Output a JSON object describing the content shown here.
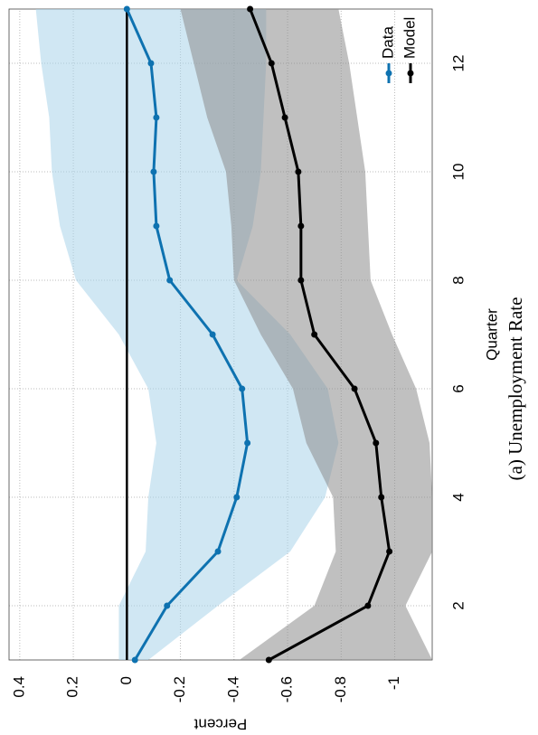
{
  "chart_data": {
    "type": "line",
    "caption": "(a) Unemployment Rate",
    "xlabel": "Quarter",
    "ylabel": "Percent",
    "xlim": [
      1,
      13
    ],
    "xticks": [
      2,
      4,
      6,
      8,
      10,
      12
    ],
    "ylim": [
      -1.14,
      0.44
    ],
    "yticks": [
      0.4,
      0.2,
      0,
      -0.2,
      -0.4,
      -0.6,
      -0.8,
      -1
    ],
    "grid": true,
    "legend": "lower right",
    "hline": 0,
    "hline_color": "#000000",
    "x": [
      1,
      2,
      3,
      4,
      5,
      6,
      7,
      8,
      9,
      10,
      11,
      12,
      13
    ],
    "series": [
      {
        "name": "Data",
        "color": "#0e72b0",
        "band_color": "#a9d4ea",
        "values": [
          -0.03,
          -0.15,
          -0.34,
          -0.41,
          -0.45,
          -0.43,
          -0.32,
          -0.16,
          -0.11,
          -0.1,
          -0.11,
          -0.09,
          0
        ],
        "upper": [
          0.03,
          0.03,
          -0.07,
          -0.08,
          -0.11,
          -0.08,
          0.03,
          0.19,
          0.25,
          0.28,
          0.29,
          0.32,
          0.34
        ],
        "lower": [
          -0.08,
          -0.34,
          -0.61,
          -0.74,
          -0.79,
          -0.75,
          -0.61,
          -0.41,
          -0.47,
          -0.5,
          -0.51,
          -0.52,
          -0.52
        ]
      },
      {
        "name": "Model",
        "color": "#000000",
        "band_color": "#8c8c8c",
        "values": [
          -0.53,
          -0.9,
          -0.98,
          -0.95,
          -0.93,
          -0.85,
          -0.7,
          -0.65,
          -0.65,
          -0.64,
          -0.59,
          -0.54,
          -0.46
        ],
        "upper": [
          -0.42,
          -0.7,
          -0.78,
          -0.77,
          -0.67,
          -0.62,
          -0.5,
          -0.4,
          -0.39,
          -0.37,
          -0.3,
          -0.25,
          -0.2
        ],
        "lower": [
          -1.14,
          -1.04,
          -1.14,
          -1.14,
          -1.13,
          -1.08,
          -0.99,
          -0.91,
          -0.9,
          -0.89,
          -0.86,
          -0.83,
          -0.79
        ]
      }
    ]
  }
}
